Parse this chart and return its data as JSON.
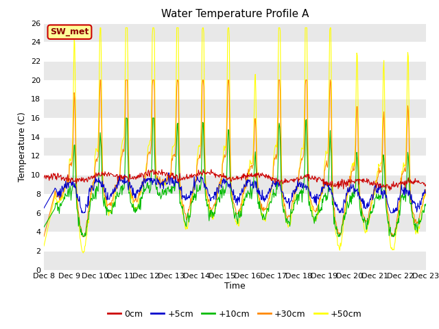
{
  "title": "Water Temperature Profile A",
  "xlabel": "Time",
  "ylabel": "Temperature (C)",
  "ylim": [
    0,
    26
  ],
  "yticks": [
    0,
    2,
    4,
    6,
    8,
    10,
    12,
    14,
    16,
    18,
    20,
    22,
    24,
    26
  ],
  "colors": {
    "0cm": "#cc0000",
    "+5cm": "#0000cc",
    "+10cm": "#00bb00",
    "+30cm": "#ff8800",
    "+50cm": "#ffff00"
  },
  "bg_color": "#ffffff",
  "band_color": "#e8e8e8",
  "grid_color": "#cccccc",
  "legend_label": "SW_met",
  "legend_bg": "#ffff99",
  "legend_border": "#cc0000",
  "title_fontsize": 11,
  "axis_fontsize": 9,
  "tick_fontsize": 8,
  "line_width": 0.8,
  "x_tick_labels": [
    "Dec 8",
    "Dec 9",
    "Dec 10",
    "Dec 11",
    "Dec 12",
    "Dec 13",
    "Dec 14",
    "Dec 15",
    "Dec 16",
    "Dec 17",
    "Dec 18",
    "Dec 19",
    "Dec 20",
    "Dec 21",
    "Dec 22",
    "Dec 23"
  ]
}
